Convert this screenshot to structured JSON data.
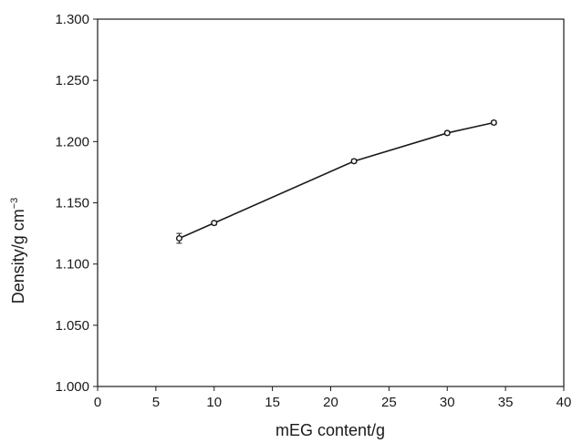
{
  "chart_data": {
    "type": "line",
    "title": "",
    "xlabel": "mEG content/g",
    "ylabel_main": "Density/g cm",
    "ylabel_sup": "−3",
    "xlim": [
      0,
      40
    ],
    "ylim": [
      1.0,
      1.3
    ],
    "x_ticks": [
      0,
      5,
      10,
      15,
      20,
      25,
      30,
      35,
      40
    ],
    "x_tick_labels": [
      "0",
      "5",
      "10",
      "15",
      "20",
      "25",
      "30",
      "35",
      "40"
    ],
    "y_ticks": [
      1.0,
      1.05,
      1.1,
      1.15,
      1.2,
      1.25,
      1.3
    ],
    "y_tick_labels": [
      "1.000",
      "1.050",
      "1.100",
      "1.150",
      "1.200",
      "1.250",
      "1.300"
    ],
    "grid": false,
    "legend": "none",
    "series": [
      {
        "x": [
          7,
          10,
          22,
          30,
          34
        ],
        "y": [
          1.121,
          1.1335,
          1.184,
          1.207,
          1.2155
        ],
        "error": [
          0.004,
          0.0015,
          0.0015,
          0.0015,
          0.0015
        ]
      }
    ],
    "colors": {
      "line": "#1a1a1a",
      "axis": "#1a1a1a",
      "marker_fill": "#ffffff"
    }
  }
}
